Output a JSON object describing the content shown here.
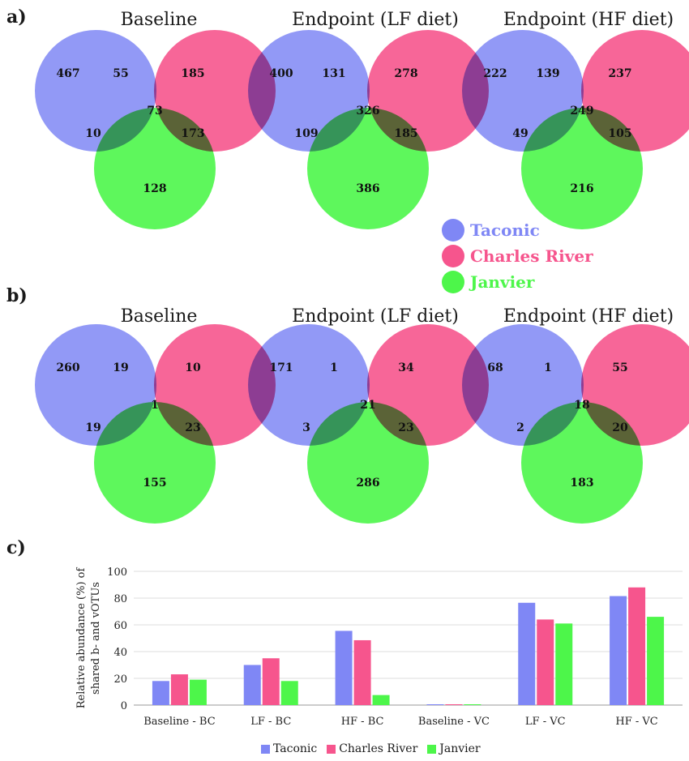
{
  "panels": {
    "a": {
      "label": "a)"
    },
    "b": {
      "label": "b)"
    },
    "c": {
      "label": "c)"
    }
  },
  "colors": {
    "taconic": "#7f87f5",
    "charles_river": "#f6558d",
    "janvier": "#4df64a"
  },
  "venn_legend": [
    {
      "name": "Taconic",
      "color": "#7f87f5"
    },
    {
      "name": "Charles River",
      "color": "#f6558d"
    },
    {
      "name": "Janvier",
      "color": "#4df64a"
    }
  ],
  "venn_a": [
    {
      "title": "Baseline",
      "counts": {
        "t": "467",
        "tc": "55",
        "c": "185",
        "tj": "10",
        "tcj": "73",
        "cj": "173",
        "j": "128"
      }
    },
    {
      "title": "Endpoint (LF diet)",
      "counts": {
        "t": "400",
        "tc": "131",
        "c": "278",
        "tj": "109",
        "tcj": "326",
        "cj": "185",
        "j": "386"
      }
    },
    {
      "title": "Endpoint (HF diet)",
      "counts": {
        "t": "222",
        "tc": "139",
        "c": "237",
        "tj": "49",
        "tcj": "249",
        "cj": "105",
        "j": "216"
      }
    }
  ],
  "venn_b": [
    {
      "title": "Baseline",
      "counts": {
        "t": "260",
        "tc": "19",
        "c": "10",
        "tj": "19",
        "tcj": "1",
        "cj": "23",
        "j": "155"
      }
    },
    {
      "title": "Endpoint (LF diet)",
      "counts": {
        "t": "171",
        "tc": "1",
        "c": "34",
        "tj": "3",
        "tcj": "21",
        "cj": "23",
        "j": "286"
      }
    },
    {
      "title": "Endpoint (HF diet)",
      "counts": {
        "t": "68",
        "tc": "1",
        "c": "55",
        "tj": "2",
        "tcj": "18",
        "cj": "20",
        "j": "183"
      }
    }
  ],
  "chart_data": {
    "type": "bar",
    "categories": [
      "Baseline - BC",
      "LF - BC",
      "HF - BC",
      "Baseline - VC",
      "LF - VC",
      "HF - VC"
    ],
    "series": [
      {
        "name": "Taconic",
        "values": [
          18,
          30,
          55.5,
          0.5,
          76.5,
          81.5
        ]
      },
      {
        "name": "Charles River",
        "values": [
          23,
          35,
          48.5,
          0.5,
          64,
          88
        ]
      },
      {
        "name": "Janvier",
        "values": [
          19,
          18,
          7.5,
          0.5,
          61,
          66
        ]
      }
    ],
    "ylabel_line1": "Relative abundance (%) of",
    "ylabel_line2": "shared b- and vOTUs",
    "ylim": [
      0,
      100
    ],
    "yticks": [
      "0",
      "20",
      "40",
      "60",
      "80",
      "100"
    ],
    "grid": true,
    "legend_position": "bottom-center"
  }
}
